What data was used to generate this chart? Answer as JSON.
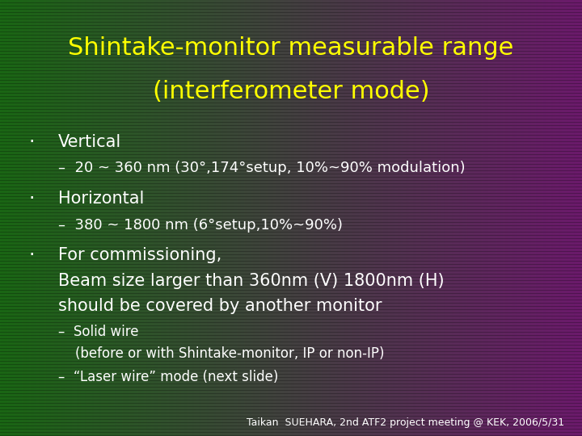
{
  "title_line1": "Shintake-monitor measurable range",
  "title_line2": "(interferometer mode)",
  "title_color": "#ffff00",
  "title_fontsize": 22,
  "body_color": "#ffffff",
  "body_fontsize": 15,
  "sub_fontsize": 13,
  "small_fontsize": 12,
  "footer_text": "Taikan  SUEHARA, 2nd ATF2 project meeting @ KEK, 2006/5/31",
  "footer_fontsize": 9,
  "bullet1_main": "Vertical",
  "bullet1_sub": "–  20 ~ 360 nm (30°,174°setup, 10%~90% modulation)",
  "bullet2_main": "Horizontal",
  "bullet2_sub": "–  380 ~ 1800 nm (6°setup,10%~90%)",
  "bullet3_main": "For commissioning,",
  "bullet3_sub1": "Beam size larger than 360nm (V) 1800nm (H)",
  "bullet3_sub2": "should be covered by another monitor",
  "bullet3_sub3": "–  Solid wire",
  "bullet3_sub4": "    (before or with Shintake-monitor, IP or non-IP)",
  "bullet3_sub5": "–  “Laser wire” mode (next slide)"
}
